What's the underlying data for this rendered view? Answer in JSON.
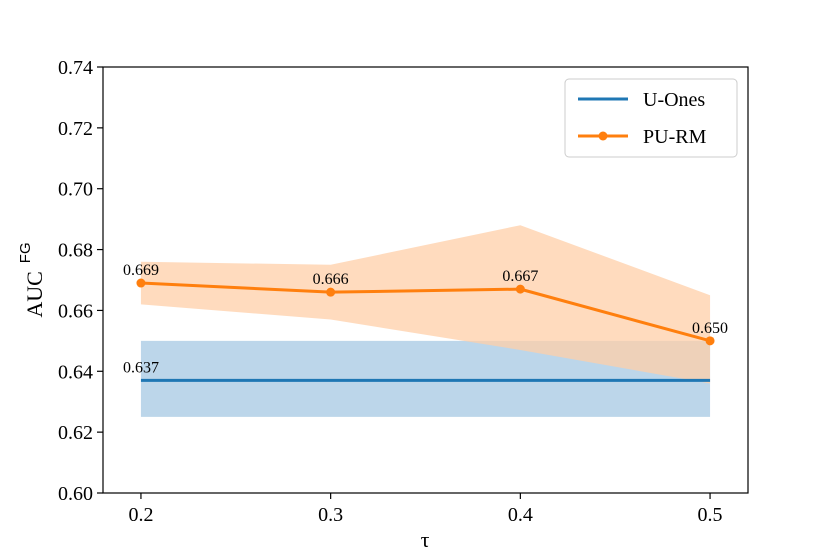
{
  "chart_data": {
    "type": "line",
    "x": [
      0.2,
      0.3,
      0.4,
      0.5
    ],
    "x_tick_labels": [
      "0.2",
      "0.3",
      "0.4",
      "0.5"
    ],
    "xlabel": "τ",
    "ylabel": "AUC",
    "ylabel_superscript": "FG",
    "ylim": [
      0.6,
      0.74
    ],
    "y_ticks": [
      0.6,
      0.62,
      0.64,
      0.66,
      0.68,
      0.7,
      0.72,
      0.74
    ],
    "y_tick_labels": [
      "0.60",
      "0.62",
      "0.64",
      "0.66",
      "0.68",
      "0.70",
      "0.72",
      "0.74"
    ],
    "legend_position": "top-right",
    "series": [
      {
        "name": "U-Ones",
        "color": "#1f77b4",
        "fill_color": "#bcd6ea",
        "marker": "none",
        "values": [
          0.637,
          0.637,
          0.637,
          0.637
        ],
        "lower": [
          0.625,
          0.625,
          0.625,
          0.625
        ],
        "upper": [
          0.65,
          0.65,
          0.65,
          0.65
        ],
        "labels": [
          {
            "index": 0,
            "text": "0.637"
          }
        ]
      },
      {
        "name": "PU-RM",
        "color": "#ff7f0e",
        "fill_color": "#ffcfa8",
        "marker": "circle",
        "values": [
          0.669,
          0.666,
          0.667,
          0.65
        ],
        "lower": [
          0.662,
          0.657,
          0.647,
          0.636
        ],
        "upper": [
          0.676,
          0.675,
          0.688,
          0.665
        ],
        "labels": [
          {
            "index": 0,
            "text": "0.669"
          },
          {
            "index": 1,
            "text": "0.666"
          },
          {
            "index": 2,
            "text": "0.667"
          },
          {
            "index": 3,
            "text": "0.650"
          }
        ]
      }
    ]
  }
}
